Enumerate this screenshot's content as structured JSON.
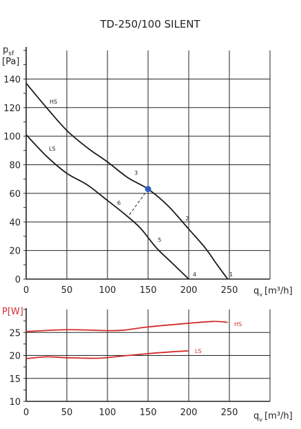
{
  "title": "TD-250/100 SILENT",
  "chart_data": [
    {
      "type": "line",
      "name": "pressure",
      "ylabel_main": "p",
      "ylabel_sub": "sf",
      "ylabel_unit": "[Pa]",
      "xlabel_main": "q",
      "xlabel_sub": "v",
      "xlabel_unit": "[m³/h]",
      "xlim": [
        0,
        300
      ],
      "ylim": [
        0,
        160
      ],
      "xticks": [
        0,
        50,
        100,
        150,
        200,
        250
      ],
      "yticks": [
        0,
        20,
        40,
        60,
        80,
        100,
        120,
        140
      ],
      "grid": true,
      "series": [
        {
          "name": "HS",
          "x": [
            0,
            25,
            50,
            75,
            100,
            125,
            150,
            175,
            200,
            220,
            235,
            248
          ],
          "y": [
            137,
            120,
            104,
            92,
            82,
            71,
            63,
            51,
            35,
            22,
            10,
            0
          ]
        },
        {
          "name": "LS",
          "x": [
            0,
            25,
            50,
            75,
            100,
            120,
            140,
            160,
            180,
            200
          ],
          "y": [
            101,
            86,
            74,
            66,
            55,
            46,
            36,
            22,
            11,
            0
          ]
        }
      ],
      "markers": [
        {
          "label": "1",
          "x": 250,
          "y": 2
        },
        {
          "label": "2",
          "x": 196,
          "y": 41
        },
        {
          "label": "3",
          "x": 133,
          "y": 73
        },
        {
          "label": "4",
          "x": 205,
          "y": 2
        },
        {
          "label": "5",
          "x": 162,
          "y": 26
        },
        {
          "label": "6",
          "x": 112,
          "y": 52
        }
      ],
      "operating_point": {
        "x": 150,
        "y": 63,
        "color": "#2d5ec0"
      },
      "dashed_segment": {
        "x": [
          127,
          150
        ],
        "y": [
          45,
          63
        ]
      }
    },
    {
      "type": "line",
      "name": "power",
      "ylabel_main": "P[W]",
      "xlabel_main": "q",
      "xlabel_sub": "v",
      "xlabel_unit": "[m³/h]",
      "xlim": [
        0,
        300
      ],
      "ylim": [
        10,
        30
      ],
      "xticks": [
        0,
        50,
        100,
        150,
        200,
        250
      ],
      "yticks": [
        10,
        15,
        20,
        25
      ],
      "grid": true,
      "line_color": "#d42a2a",
      "series": [
        {
          "name": "HS",
          "x": [
            0,
            50,
            100,
            120,
            150,
            200,
            230,
            248
          ],
          "y": [
            25.2,
            25.6,
            25.4,
            25.5,
            26.2,
            27.0,
            27.4,
            27.2
          ]
        },
        {
          "name": "LS",
          "x": [
            0,
            25,
            50,
            90,
            120,
            150,
            180,
            200
          ],
          "y": [
            19.3,
            19.7,
            19.5,
            19.4,
            19.9,
            20.4,
            20.8,
            21.0
          ]
        }
      ]
    }
  ]
}
